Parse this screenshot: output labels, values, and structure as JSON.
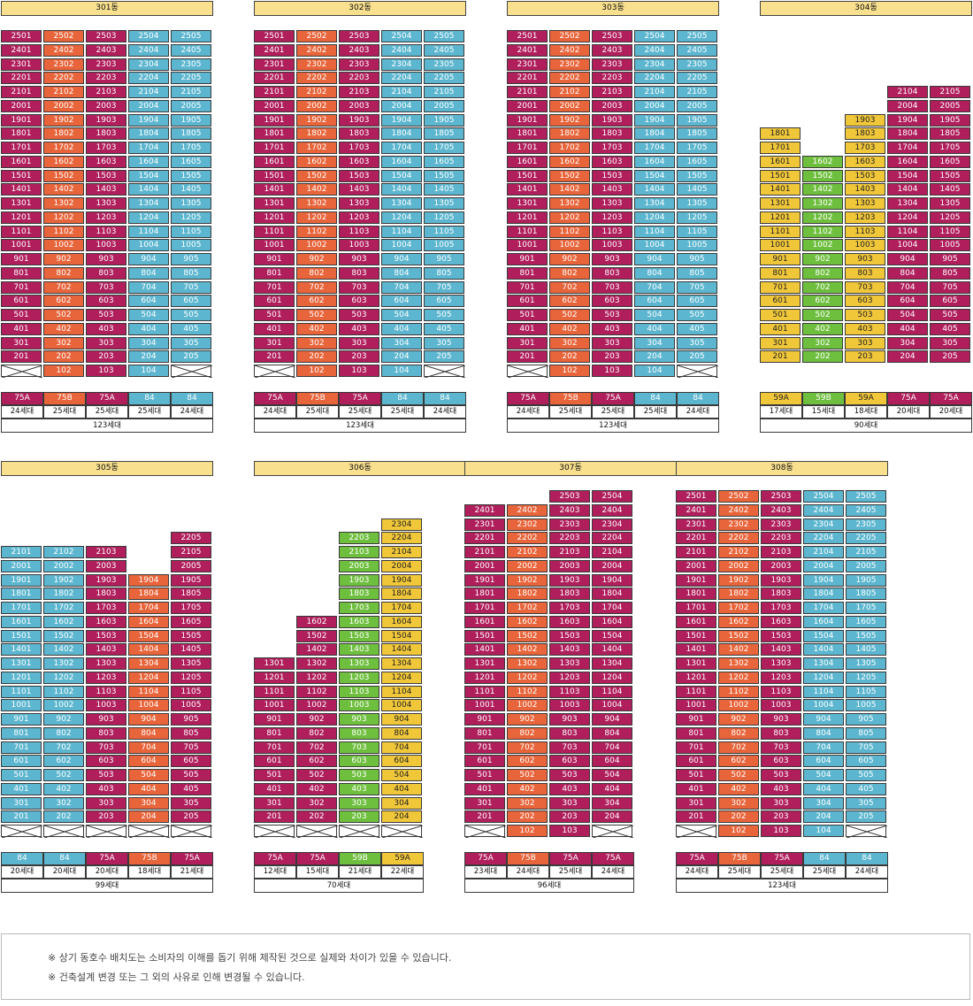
{
  "colors": {
    "mag": "#b01f5c",
    "ora": "#e8643a",
    "cya": "#5cb6cf",
    "yel": "#f1c73a",
    "grn": "#6fbf3f"
  },
  "notice": [
    "※ 상기 동호수 배치도는 소비자의 이해를 돕기 위해 제작된 것으로 실제와 차이가 있을 수 있습니다.",
    "※ 건축설계 변경 또는 그 외의 사유로 인해 변경될 수 있습니다."
  ],
  "buildings": [
    {
      "name": "301동",
      "total": "123세대",
      "cols": [
        {
          "type": "75A",
          "count": "24세대",
          "color": "mag",
          "max": 25,
          "min": 2,
          "pilotis": true
        },
        {
          "type": "75B",
          "count": "25세대",
          "color": "ora",
          "max": 25,
          "min": 1,
          "pilotis": false
        },
        {
          "type": "75A",
          "count": "25세대",
          "color": "mag",
          "max": 25,
          "min": 1,
          "pilotis": false
        },
        {
          "type": "84",
          "count": "25세대",
          "color": "cya",
          "max": 25,
          "min": 1,
          "pilotis": false
        },
        {
          "type": "84",
          "count": "24세대",
          "color": "cya",
          "max": 25,
          "min": 2,
          "pilotis": true
        }
      ]
    },
    {
      "name": "302동",
      "total": "123세대",
      "cols": [
        {
          "type": "75A",
          "count": "24세대",
          "color": "mag",
          "max": 25,
          "min": 2,
          "pilotis": true
        },
        {
          "type": "75B",
          "count": "25세대",
          "color": "ora",
          "max": 25,
          "min": 1,
          "pilotis": false
        },
        {
          "type": "75A",
          "count": "25세대",
          "color": "mag",
          "max": 25,
          "min": 1,
          "pilotis": false
        },
        {
          "type": "84",
          "count": "25세대",
          "color": "cya",
          "max": 25,
          "min": 1,
          "pilotis": false
        },
        {
          "type": "84",
          "count": "24세대",
          "color": "cya",
          "max": 25,
          "min": 2,
          "pilotis": true
        }
      ]
    },
    {
      "name": "303동",
      "total": "123세대",
      "cols": [
        {
          "type": "75A",
          "count": "24세대",
          "color": "mag",
          "max": 25,
          "min": 2,
          "pilotis": true
        },
        {
          "type": "75B",
          "count": "25세대",
          "color": "ora",
          "max": 25,
          "min": 1,
          "pilotis": false
        },
        {
          "type": "75A",
          "count": "25세대",
          "color": "mag",
          "max": 25,
          "min": 1,
          "pilotis": false
        },
        {
          "type": "84",
          "count": "25세대",
          "color": "cya",
          "max": 25,
          "min": 1,
          "pilotis": false
        },
        {
          "type": "84",
          "count": "24세대",
          "color": "cya",
          "max": 25,
          "min": 2,
          "pilotis": true
        }
      ]
    },
    {
      "name": "304동",
      "total": "90세대",
      "cols": [
        {
          "type": "59A",
          "count": "17세대",
          "color": "yel",
          "max": 18,
          "min": 2,
          "pilotis": false
        },
        {
          "type": "59B",
          "count": "15세대",
          "color": "grn",
          "max": 16,
          "min": 2,
          "pilotis": false
        },
        {
          "type": "59A",
          "count": "18세대",
          "color": "yel",
          "max": 19,
          "min": 2,
          "pilotis": false
        },
        {
          "type": "75A",
          "count": "20세대",
          "color": "mag",
          "max": 21,
          "min": 2,
          "pilotis": false
        },
        {
          "type": "75A",
          "count": "20세대",
          "color": "mag",
          "max": 21,
          "min": 2,
          "pilotis": false
        }
      ]
    },
    {
      "name": "305동",
      "total": "99세대",
      "cols": [
        {
          "type": "84",
          "count": "20세대",
          "color": "cya",
          "max": 21,
          "min": 2,
          "pilotis": true
        },
        {
          "type": "84",
          "count": "20세대",
          "color": "cya",
          "max": 21,
          "min": 2,
          "pilotis": true
        },
        {
          "type": "75A",
          "count": "20세대",
          "color": "mag",
          "max": 21,
          "min": 2,
          "pilotis": true
        },
        {
          "type": "75B",
          "count": "18세대",
          "color": "ora",
          "max": 19,
          "min": 2,
          "pilotis": true
        },
        {
          "type": "75A",
          "count": "21세대",
          "color": "mag",
          "max": 22,
          "min": 2,
          "pilotis": true
        }
      ]
    },
    {
      "name": "306동",
      "total": "70세대",
      "cols": [
        {
          "type": "75A",
          "count": "12세대",
          "color": "mag",
          "max": 13,
          "min": 2,
          "pilotis": true
        },
        {
          "type": "75A",
          "count": "15세대",
          "color": "mag",
          "max": 16,
          "min": 2,
          "pilotis": true
        },
        {
          "type": "59B",
          "count": "21세대",
          "color": "grn",
          "max": 22,
          "min": 2,
          "pilotis": true
        },
        {
          "type": "59A",
          "count": "22세대",
          "color": "yel",
          "max": 23,
          "min": 2,
          "pilotis": true
        }
      ]
    },
    {
      "name": "307동",
      "total": "96세대",
      "cols": [
        {
          "type": "75A",
          "count": "23세대",
          "color": "mag",
          "max": 24,
          "min": 2,
          "pilotis": true
        },
        {
          "type": "75B",
          "count": "24세대",
          "color": "ora",
          "max": 24,
          "min": 1,
          "pilotis": false
        },
        {
          "type": "75A",
          "count": "25세대",
          "color": "mag",
          "max": 25,
          "min": 1,
          "pilotis": false
        },
        {
          "type": "75A",
          "count": "24세대",
          "color": "mag",
          "max": 25,
          "min": 2,
          "pilotis": true
        }
      ]
    },
    {
      "name": "308동",
      "total": "123세대",
      "cols": [
        {
          "type": "75A",
          "count": "24세대",
          "color": "mag",
          "max": 25,
          "min": 2,
          "pilotis": true
        },
        {
          "type": "75B",
          "count": "25세대",
          "color": "ora",
          "max": 25,
          "min": 1,
          "pilotis": false
        },
        {
          "type": "75A",
          "count": "25세대",
          "color": "mag",
          "max": 25,
          "min": 1,
          "pilotis": false
        },
        {
          "type": "84",
          "count": "25세대",
          "color": "cya",
          "max": 25,
          "min": 1,
          "pilotis": false
        },
        {
          "type": "84",
          "count": "24세대",
          "color": "cya",
          "max": 25,
          "min": 2,
          "pilotis": true
        }
      ]
    }
  ]
}
